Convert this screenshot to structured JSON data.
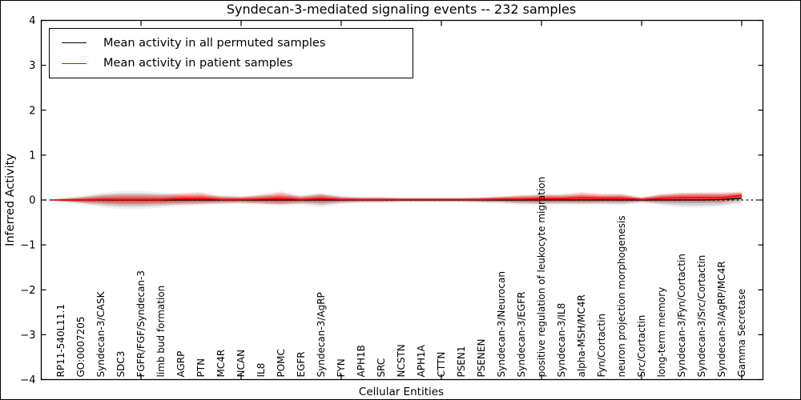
{
  "chart_data": {
    "type": "line",
    "title": "Syndecan-3-mediated signaling events -- 232 samples",
    "xlabel": "Cellular Entities",
    "ylabel": "Inferred Activity",
    "ylim": [
      -4,
      4
    ],
    "yticks": [
      4,
      3,
      2,
      1,
      0,
      -1,
      -2,
      -3,
      -4
    ],
    "grid": false,
    "legend_position": "upper left",
    "zero_line_style": "dotted",
    "sample_count": "232 samples",
    "categories": [
      "RP11-540L11.1",
      "GO:0007205",
      "Syndecan-3/CASK",
      "SDC3",
      "FGFR/FGF/Syndecan-3",
      "limb bud formation",
      "AGRP",
      "PTN",
      "MC4R",
      "NCAN",
      "IL8",
      "POMC",
      "EGFR",
      "Syndecan-3/AgRP",
      "FYN",
      "APH1B",
      "SRC",
      "NCSTN",
      "APH1A",
      "CTTN",
      "PSEN1",
      "PSENEN",
      "Syndecan-3/Neurocan",
      "Syndecan-3/EGFR",
      "positive regulation of leukocyte migration",
      "Syndecan-3/IL8",
      "alpha-MSH/MC4R",
      "Fyn/Cortactin",
      "neuron projection morphogenesis",
      "Src/Cortactin",
      "long-term memory",
      "Syndecan-3/Fyn/Cortactin",
      "Syndecan-3/Src/Cortactin",
      "Syndecan-3/AgRP/MC4R",
      "Gamma Secretase"
    ],
    "series": [
      {
        "name": "Mean activity in all permuted samples",
        "color": "#000000",
        "values": [
          0,
          0,
          0,
          0,
          0,
          0,
          0,
          0,
          0,
          0,
          0,
          0,
          0,
          0,
          0,
          0,
          0,
          0,
          0,
          0,
          0,
          0,
          0,
          0,
          0,
          0,
          0,
          0,
          0,
          0,
          0,
          0,
          0,
          0.01,
          0.04
        ]
      },
      {
        "name": "Mean activity in patient samples",
        "color": "#ff0000",
        "values": [
          0.0,
          0.0,
          0.01,
          0.01,
          0.01,
          0.01,
          0.03,
          0.04,
          0.01,
          0.01,
          0.02,
          0.04,
          0.01,
          0.03,
          0.01,
          0.01,
          0.01,
          0.01,
          0.01,
          0.01,
          0.01,
          0.01,
          0.02,
          0.02,
          0.03,
          0.03,
          0.05,
          0.04,
          0.04,
          0.01,
          0.04,
          0.05,
          0.05,
          0.05,
          0.1
        ]
      }
    ],
    "bands": [
      {
        "name": "permuted-activity-range",
        "center_series": 0,
        "fill_color": "rgba(0,0,0,0.12)",
        "half_widths": [
          0.03,
          0.07,
          0.12,
          0.15,
          0.15,
          0.13,
          0.1,
          0.08,
          0.08,
          0.07,
          0.08,
          0.09,
          0.08,
          0.12,
          0.07,
          0.05,
          0.05,
          0.04,
          0.04,
          0.04,
          0.04,
          0.05,
          0.06,
          0.08,
          0.09,
          0.08,
          0.08,
          0.08,
          0.09,
          0.05,
          0.09,
          0.12,
          0.13,
          0.12,
          0.09
        ]
      },
      {
        "name": "patient-activity-range",
        "center_series": 1,
        "fill_color": "rgba(255,0,0,0.22)",
        "half_widths": [
          0.02,
          0.05,
          0.08,
          0.1,
          0.1,
          0.09,
          0.1,
          0.11,
          0.06,
          0.05,
          0.08,
          0.12,
          0.06,
          0.09,
          0.05,
          0.04,
          0.04,
          0.03,
          0.03,
          0.03,
          0.03,
          0.04,
          0.05,
          0.07,
          0.08,
          0.08,
          0.1,
          0.08,
          0.08,
          0.04,
          0.08,
          0.09,
          0.09,
          0.09,
          0.07
        ]
      }
    ]
  }
}
